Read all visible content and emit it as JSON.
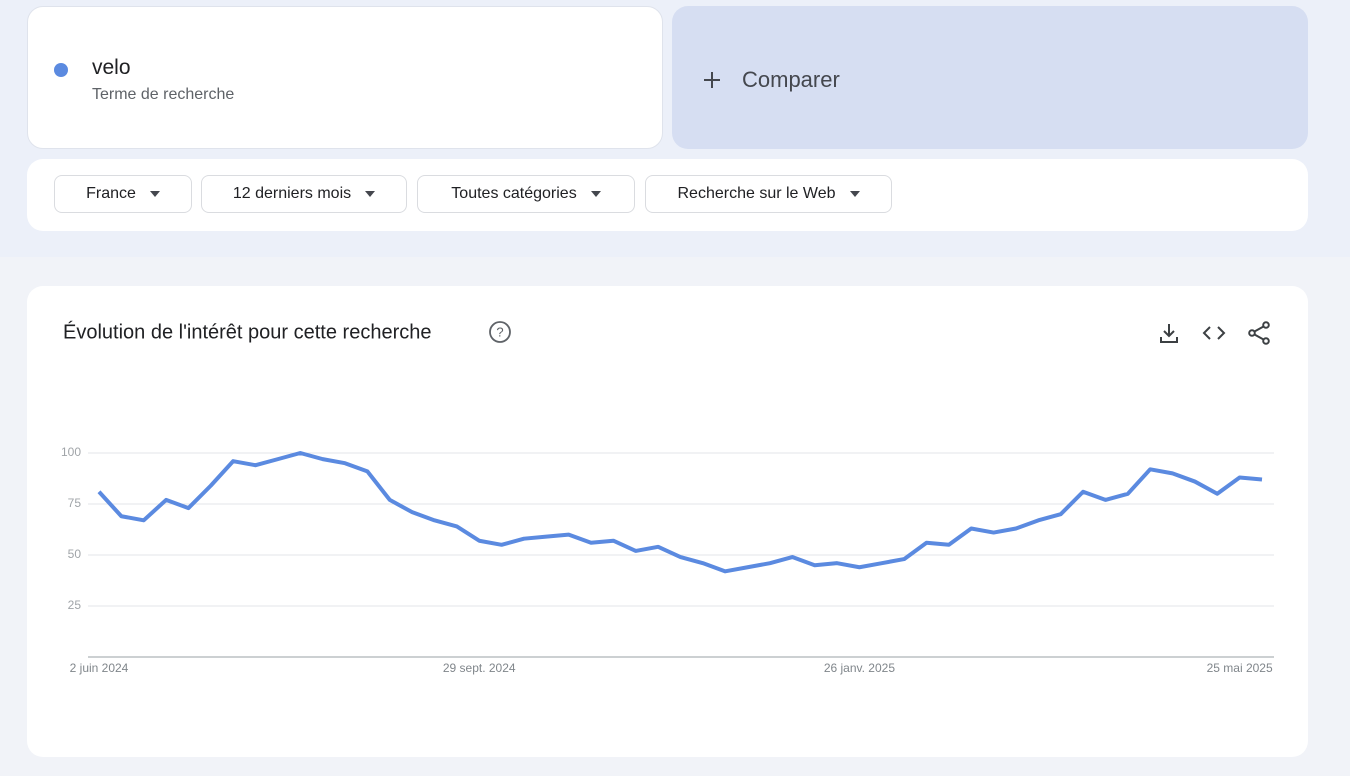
{
  "search": {
    "subtitle": "Terme de recherche",
    "compare": "Comparer"
  },
  "filters": [
    "France",
    "12 derniers mois",
    "Toutes catégories",
    "Recherche sur le Web"
  ],
  "chart_data": {
    "type": "line",
    "title": "Évolution de l'intérêt pour cette recherche",
    "categories": [
      "2 juin 2024",
      null,
      null,
      null,
      null,
      null,
      null,
      null,
      null,
      null,
      null,
      null,
      null,
      null,
      null,
      null,
      null,
      "29 sept. 2024",
      null,
      null,
      null,
      null,
      null,
      null,
      null,
      null,
      null,
      null,
      null,
      null,
      null,
      null,
      null,
      null,
      "26 janv. 2025",
      null,
      null,
      null,
      null,
      null,
      null,
      null,
      null,
      null,
      null,
      null,
      null,
      null,
      null,
      null,
      null,
      "25 mai 2025",
      null
    ],
    "series": [
      {
        "name": "velo",
        "color": "#5b8ae0",
        "values": [
          81,
          69,
          67,
          77,
          73,
          84,
          96,
          94,
          97,
          100,
          97,
          95,
          91,
          77,
          71,
          67,
          64,
          57,
          55,
          58,
          59,
          60,
          56,
          57,
          52,
          54,
          49,
          46,
          42,
          44,
          46,
          49,
          45,
          46,
          44,
          46,
          48,
          56,
          55,
          63,
          61,
          63,
          67,
          70,
          81,
          77,
          80,
          92,
          90,
          86,
          80,
          88,
          87
        ]
      }
    ],
    "ylim": [
      0,
      100
    ],
    "yticks": [
      25,
      50,
      75,
      100
    ],
    "grid": true
  }
}
